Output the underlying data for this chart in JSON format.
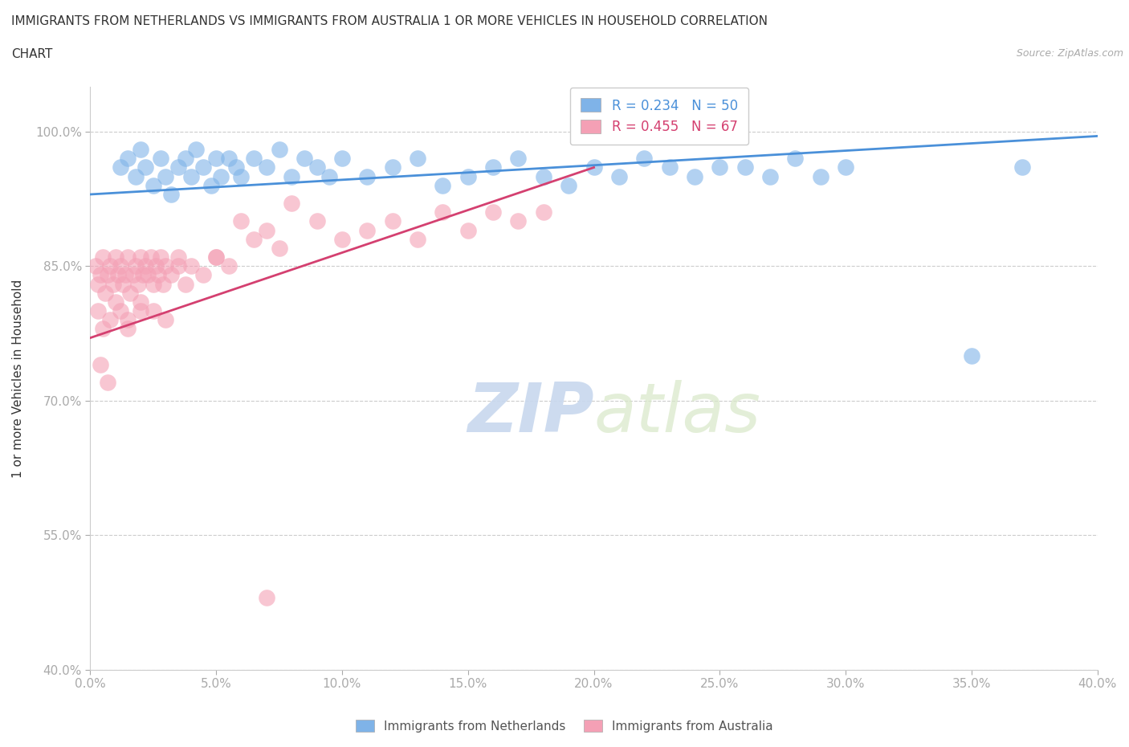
{
  "title_line1": "IMMIGRANTS FROM NETHERLANDS VS IMMIGRANTS FROM AUSTRALIA 1 OR MORE VEHICLES IN HOUSEHOLD CORRELATION",
  "title_line2": "CHART",
  "source": "Source: ZipAtlas.com",
  "ylabel": "1 or more Vehicles in Household",
  "xlim": [
    0.0,
    40.0
  ],
  "ylim": [
    40.0,
    105.0
  ],
  "yticks": [
    40.0,
    55.0,
    70.0,
    85.0,
    100.0
  ],
  "xticks": [
    0.0,
    5.0,
    10.0,
    15.0,
    20.0,
    25.0,
    30.0,
    35.0,
    40.0
  ],
  "netherlands_color": "#7fb3e8",
  "australia_color": "#f4a0b5",
  "netherlands_R": 0.234,
  "netherlands_N": 50,
  "australia_R": 0.455,
  "australia_N": 67,
  "netherlands_line_color": "#4a90d9",
  "australia_line_color": "#d44070",
  "watermark_zip": "ZIP",
  "watermark_atlas": "atlas",
  "netherlands_x": [
    1.2,
    1.5,
    1.8,
    2.0,
    2.2,
    2.5,
    2.8,
    3.0,
    3.2,
    3.5,
    3.8,
    4.0,
    4.2,
    4.5,
    4.8,
    5.0,
    5.2,
    5.5,
    5.8,
    6.0,
    6.5,
    7.0,
    7.5,
    8.0,
    8.5,
    9.0,
    9.5,
    10.0,
    11.0,
    12.0,
    13.0,
    14.0,
    15.0,
    16.0,
    17.0,
    18.0,
    19.0,
    20.0,
    21.0,
    22.0,
    23.0,
    24.0,
    25.0,
    26.0,
    27.0,
    28.0,
    29.0,
    30.0,
    35.0,
    37.0
  ],
  "netherlands_y": [
    96,
    97,
    95,
    98,
    96,
    94,
    97,
    95,
    93,
    96,
    97,
    95,
    98,
    96,
    94,
    97,
    95,
    97,
    96,
    95,
    97,
    96,
    98,
    95,
    97,
    96,
    95,
    97,
    95,
    96,
    97,
    94,
    95,
    96,
    97,
    95,
    94,
    96,
    95,
    97,
    96,
    95,
    96,
    96,
    95,
    97,
    95,
    96,
    75,
    96
  ],
  "australia_x": [
    0.2,
    0.3,
    0.4,
    0.5,
    0.6,
    0.7,
    0.8,
    0.9,
    1.0,
    1.1,
    1.2,
    1.3,
    1.4,
    1.5,
    1.6,
    1.7,
    1.8,
    1.9,
    2.0,
    2.1,
    2.2,
    2.3,
    2.4,
    2.5,
    2.6,
    2.7,
    2.8,
    2.9,
    3.0,
    3.2,
    3.5,
    3.8,
    4.0,
    4.5,
    5.0,
    5.5,
    6.0,
    6.5,
    7.0,
    7.5,
    8.0,
    9.0,
    10.0,
    11.0,
    12.0,
    13.0,
    14.0,
    15.0,
    16.0,
    17.0,
    18.0,
    0.3,
    0.5,
    0.8,
    1.0,
    1.2,
    1.5,
    2.0,
    2.5,
    3.0,
    0.4,
    0.7,
    1.5,
    2.0,
    3.5,
    5.0,
    7.0
  ],
  "australia_y": [
    85,
    83,
    84,
    86,
    82,
    84,
    85,
    83,
    86,
    84,
    85,
    83,
    84,
    86,
    82,
    84,
    85,
    83,
    86,
    84,
    85,
    84,
    86,
    83,
    85,
    84,
    86,
    83,
    85,
    84,
    86,
    83,
    85,
    84,
    86,
    85,
    90,
    88,
    89,
    87,
    92,
    90,
    88,
    89,
    90,
    88,
    91,
    89,
    91,
    90,
    91,
    80,
    78,
    79,
    81,
    80,
    79,
    81,
    80,
    79,
    74,
    72,
    78,
    80,
    85,
    86,
    48
  ],
  "netherlands_trend_x": [
    0.0,
    40.0
  ],
  "netherlands_trend_y": [
    93.0,
    99.5
  ],
  "australia_trend_x": [
    0.0,
    20.0
  ],
  "australia_trend_y": [
    77.0,
    96.0
  ]
}
